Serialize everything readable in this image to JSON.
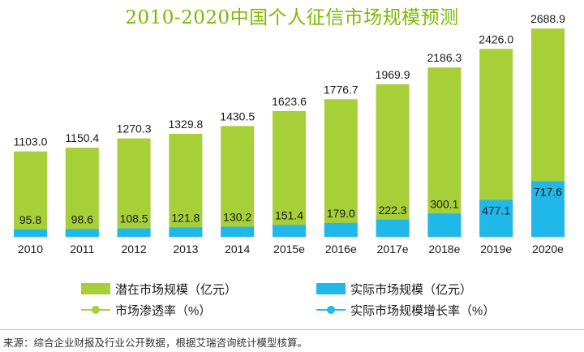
{
  "title": "2010-2020中国个人征信市场规模预测",
  "colors": {
    "potential": "#a6cf38",
    "actual": "#1fb8e8",
    "title": "#7fb800"
  },
  "chart_data": {
    "type": "bar",
    "title": "2010-2020中国个人征信市场规模预测",
    "categories": [
      "2010",
      "2011",
      "2012",
      "2013",
      "2014",
      "2015e",
      "2016e",
      "2017e",
      "2018e",
      "2019e",
      "2020e"
    ],
    "series": [
      {
        "name": "潜在市场规模（亿元）",
        "values": [
          1103.0,
          1150.4,
          1270.3,
          1329.8,
          1430.5,
          1623.6,
          1776.7,
          1969.9,
          2186.3,
          2426.0,
          2688.9
        ]
      },
      {
        "name": "实际市场规模（亿元）",
        "values": [
          95.8,
          98.6,
          108.5,
          121.8,
          130.2,
          151.4,
          179.0,
          222.3,
          300.1,
          477.1,
          717.6
        ]
      }
    ],
    "labels_potential": [
      "1103.0",
      "1150.4",
      "1270.3",
      "1329.8",
      "1430.5",
      "1623.6",
      "1776.7",
      "1969.9",
      "2186.3",
      "2426.0",
      "2688.9"
    ],
    "labels_actual": [
      "95.8",
      "98.6",
      "108.5",
      "121.8",
      "130.2",
      "151.4",
      "179.0",
      "222.3",
      "300.1",
      "477.1",
      "717.6"
    ],
    "ylim": [
      0,
      2800
    ],
    "grid": false,
    "legend_position": "bottom"
  },
  "legend": {
    "potential": "潜在市场规模（亿元）",
    "actual": "实际市场规模（亿元）",
    "penetration": "市场渗透率（%）",
    "growth": "实际市场规模增长率（%）"
  },
  "source": "来源：综合企业财报及行业公开数据，根据艾瑞咨询统计模型核算。"
}
